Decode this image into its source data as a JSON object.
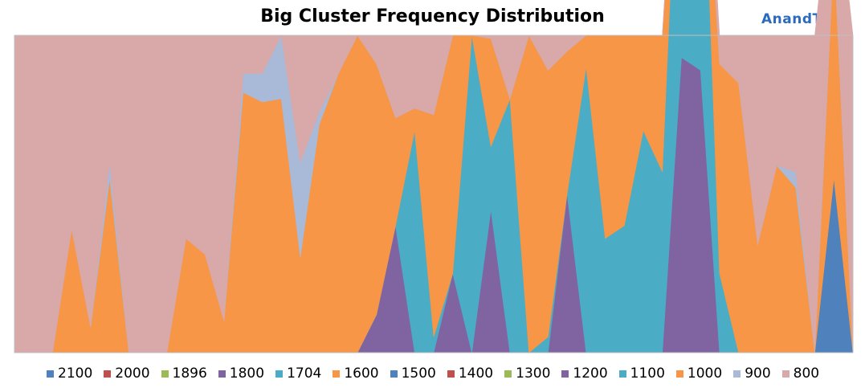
{
  "title": "Big Cluster Frequency Distribution",
  "logo_text": "AnandTech",
  "chart_data": {
    "type": "area",
    "stacked": true,
    "normalized": true,
    "title": "Big Cluster Frequency Distribution",
    "xlabel": "",
    "ylabel": "",
    "ylim": [
      0,
      100
    ],
    "grid": true,
    "legend_position": "bottom",
    "x": [
      0,
      1,
      2,
      3,
      4,
      5,
      6,
      7,
      8,
      9,
      10,
      11,
      12,
      13,
      14,
      15,
      16,
      17,
      18,
      19,
      20,
      21,
      22,
      23,
      24,
      25,
      26,
      27,
      28,
      29,
      30,
      31,
      32,
      33,
      34,
      35,
      36,
      37,
      38,
      39,
      40,
      41,
      42,
      43,
      44
    ],
    "series": [
      {
        "name": "2100",
        "color": "#4f81bd",
        "values": [
          0,
          0,
          0,
          0,
          0,
          0,
          0,
          0,
          0,
          0,
          0,
          0,
          0,
          0,
          0,
          0,
          0,
          0,
          0,
          0,
          0,
          0,
          0,
          0,
          0,
          0,
          0,
          0,
          0,
          0,
          0,
          0,
          0,
          0,
          0,
          0,
          0,
          0,
          0,
          0,
          0,
          0,
          0,
          55,
          0
        ]
      },
      {
        "name": "2000",
        "color": "#c0504d",
        "values": [
          0,
          0,
          0,
          0,
          0,
          0,
          0,
          0,
          0,
          0,
          0,
          0,
          0,
          0,
          0,
          0,
          0,
          0,
          0,
          0,
          0,
          0,
          0,
          0,
          0,
          0,
          0,
          0,
          0,
          0,
          0,
          0,
          0,
          0,
          0,
          0,
          0,
          0,
          0,
          0,
          0,
          0,
          0,
          0,
          0
        ]
      },
      {
        "name": "1896",
        "color": "#9bbb59",
        "values": [
          0,
          0,
          0,
          0,
          0,
          0,
          0,
          0,
          0,
          0,
          0,
          0,
          0,
          0,
          0,
          0,
          0,
          0,
          0,
          0,
          0,
          0,
          0,
          0,
          0,
          0,
          0,
          0,
          0,
          0,
          0,
          0,
          0,
          0,
          0,
          0,
          0,
          0,
          0,
          0,
          0,
          0,
          0,
          0,
          0
        ]
      },
      {
        "name": "1800",
        "color": "#8064a2",
        "values": [
          0,
          0,
          0,
          0,
          0,
          0,
          0,
          0,
          0,
          0,
          0,
          0,
          0,
          0,
          0,
          0,
          0,
          0,
          0,
          0,
          0,
          0,
          0,
          0,
          0,
          0,
          0,
          0,
          0,
          0,
          0,
          0,
          0,
          0,
          0,
          0,
          0,
          0,
          0,
          0,
          0,
          0,
          0,
          0,
          0
        ]
      },
      {
        "name": "1704",
        "color": "#4bacc6",
        "values": [
          0,
          0,
          0,
          0,
          0,
          0,
          0,
          0,
          0,
          0,
          0,
          0,
          0,
          0,
          0,
          0,
          0,
          0,
          0,
          0,
          0,
          0,
          0,
          0,
          0,
          0,
          0,
          0,
          0,
          0,
          0,
          0,
          0,
          0,
          0,
          0,
          0,
          0,
          0,
          0,
          0,
          0,
          0,
          0,
          0
        ]
      },
      {
        "name": "1600",
        "color": "#f79646",
        "values": [
          0,
          0,
          0,
          0,
          0,
          0,
          0,
          0,
          0,
          0,
          0,
          0,
          0,
          0,
          0,
          0,
          0,
          0,
          0,
          0,
          0,
          0,
          0,
          0,
          0,
          0,
          0,
          0,
          0,
          0,
          0,
          0,
          0,
          0,
          0,
          0,
          0,
          0,
          0,
          0,
          0,
          0,
          0,
          0,
          0
        ]
      },
      {
        "name": "1500",
        "color": "#4f81bd",
        "values": [
          0,
          0,
          0,
          0,
          0,
          0,
          0,
          0,
          0,
          0,
          0,
          0,
          0,
          0,
          0,
          0,
          0,
          0,
          0,
          0,
          0,
          0,
          0,
          0,
          0,
          0,
          0,
          0,
          0,
          0,
          0,
          0,
          0,
          0,
          0,
          0,
          0,
          0,
          0,
          0,
          0,
          0,
          0,
          0,
          0
        ]
      },
      {
        "name": "1400",
        "color": "#c0504d",
        "values": [
          0,
          0,
          0,
          0,
          0,
          0,
          0,
          0,
          0,
          0,
          0,
          0,
          0,
          0,
          0,
          0,
          0,
          0,
          0,
          0,
          0,
          0,
          0,
          0,
          0,
          0,
          0,
          0,
          0,
          0,
          0,
          0,
          0,
          0,
          0,
          0,
          0,
          0,
          0,
          0,
          0,
          0,
          0,
          0,
          0
        ]
      },
      {
        "name": "1300",
        "color": "#9bbb59",
        "values": [
          0,
          0,
          0,
          0,
          0,
          0,
          0,
          0,
          0,
          0,
          0,
          0,
          0,
          0,
          0,
          0,
          0,
          0,
          0,
          0,
          0,
          0,
          0,
          0,
          0,
          0,
          0,
          0,
          0,
          0,
          0,
          0,
          0,
          0,
          0,
          0,
          0,
          0,
          0,
          0,
          0,
          0,
          0,
          0,
          0
        ]
      },
      {
        "name": "1200",
        "color": "#8064a2",
        "values": [
          0,
          0,
          0,
          0,
          0,
          0,
          0,
          0,
          0,
          0,
          0,
          0,
          0,
          0,
          0,
          0,
          0,
          0,
          0,
          12,
          40,
          0,
          0,
          25,
          0,
          45,
          0,
          0,
          0,
          50,
          0,
          0,
          0,
          0,
          0,
          93,
          89,
          0,
          0,
          0,
          0,
          0,
          0,
          0,
          0
        ]
      },
      {
        "name": "1100",
        "color": "#4bacc6",
        "values": [
          0,
          0,
          0,
          0,
          0,
          0,
          0,
          0,
          0,
          0,
          0,
          0,
          0,
          0,
          0,
          0,
          0,
          0,
          0,
          0,
          0,
          70,
          5,
          0,
          100,
          20,
          80,
          0,
          5,
          0,
          90,
          36,
          40,
          70,
          57,
          100,
          100,
          25,
          0,
          0,
          0,
          0,
          0,
          0,
          0
        ]
      },
      {
        "name": "1000",
        "color": "#f79646",
        "values": [
          0,
          0,
          0,
          39,
          8,
          55,
          0,
          0,
          0,
          36,
          31,
          10,
          82,
          79,
          80,
          30,
          72,
          88,
          100,
          79,
          34,
          7,
          70,
          75,
          0,
          34,
          0,
          100,
          84,
          45,
          10,
          64,
          60,
          30,
          43,
          0,
          0,
          66,
          85,
          34,
          59,
          52,
          0,
          72,
          0
        ]
      },
      {
        "name": "900",
        "color": "#a9b9d8",
        "values": [
          0,
          0,
          0,
          0,
          0,
          5,
          0,
          0,
          0,
          0,
          0,
          0,
          6,
          9,
          20,
          30,
          4,
          0,
          0,
          0,
          0,
          0,
          0,
          0,
          0,
          0,
          0,
          0,
          0,
          0,
          0,
          0,
          0,
          0,
          0,
          0,
          0,
          0,
          0,
          0,
          0,
          5,
          0,
          0,
          0
        ]
      },
      {
        "name": "800",
        "color": "#d9a8a8",
        "values": [
          100,
          100,
          100,
          61,
          92,
          40,
          100,
          100,
          100,
          64,
          69,
          90,
          12,
          12,
          0,
          40,
          24,
          12,
          0,
          9,
          26,
          23,
          25,
          0,
          0,
          1,
          20,
          0,
          11,
          5,
          0,
          0,
          0,
          0,
          0,
          7,
          11,
          9,
          15,
          66,
          41,
          43,
          100,
          28,
          100
        ]
      }
    ]
  },
  "legend": [
    {
      "label": "2100",
      "color": "#4f81bd"
    },
    {
      "label": "2000",
      "color": "#c0504d"
    },
    {
      "label": "1896",
      "color": "#9bbb59"
    },
    {
      "label": "1800",
      "color": "#8064a2"
    },
    {
      "label": "1704",
      "color": "#4bacc6"
    },
    {
      "label": "1600",
      "color": "#f79646"
    },
    {
      "label": "1500",
      "color": "#4f81bd"
    },
    {
      "label": "1400",
      "color": "#c0504d"
    },
    {
      "label": "1300",
      "color": "#9bbb59"
    },
    {
      "label": "1200",
      "color": "#8064a2"
    },
    {
      "label": "1100",
      "color": "#4bacc6"
    },
    {
      "label": "1000",
      "color": "#f79646"
    },
    {
      "label": "900",
      "color": "#a9b9d8"
    },
    {
      "label": "800",
      "color": "#d9a8a8"
    }
  ]
}
